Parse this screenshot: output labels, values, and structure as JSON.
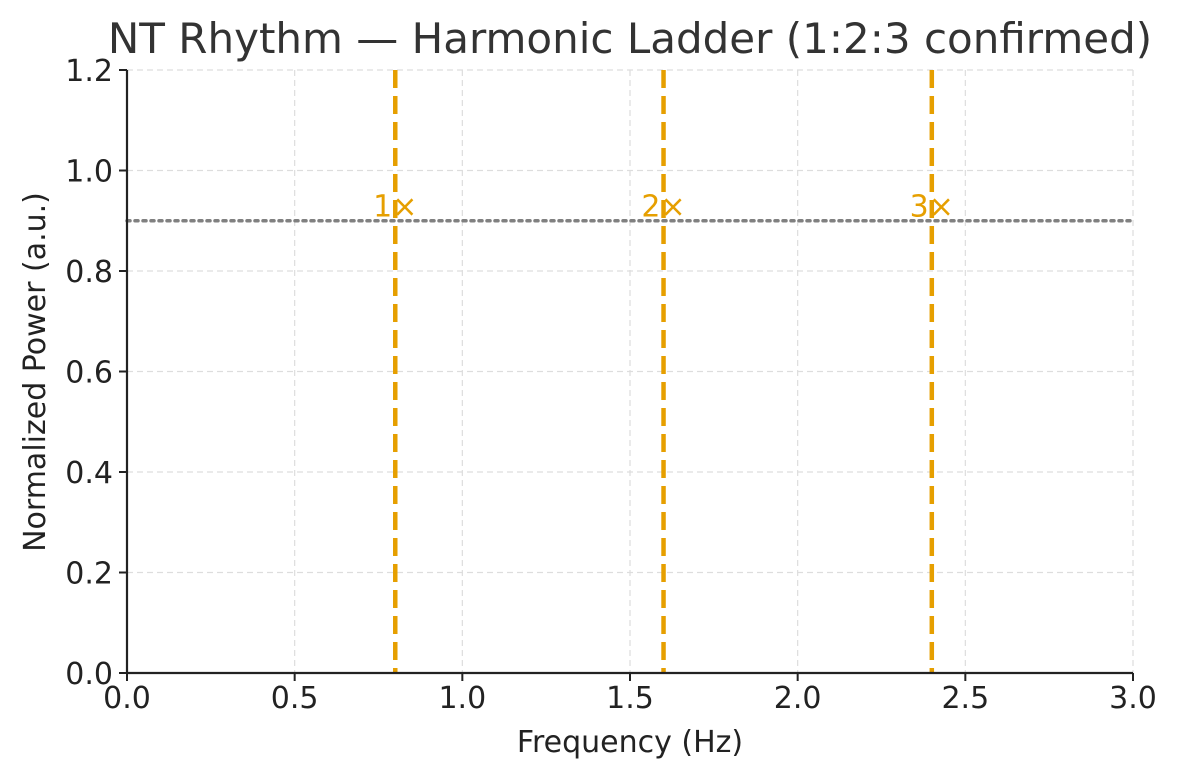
{
  "chart_data": {
    "type": "line",
    "title": "NT Rhythm — Harmonic Ladder (1:2:3 confirmed)",
    "xlabel": "Frequency (Hz)",
    "ylabel": "Normalized Power (a.u.)",
    "xlim": [
      0.0,
      3.0
    ],
    "ylim": [
      0.0,
      1.2
    ],
    "x_ticks": [
      "0.0",
      "0.5",
      "1.0",
      "1.5",
      "2.0",
      "2.5",
      "3.0"
    ],
    "y_ticks": [
      "0.0",
      "0.2",
      "0.4",
      "0.6",
      "0.8",
      "1.0",
      "1.2"
    ],
    "grid": true,
    "harmonics": [
      {
        "label": "1×",
        "x": 0.8
      },
      {
        "label": "2×",
        "x": 1.6
      },
      {
        "label": "3×",
        "x": 2.4
      }
    ],
    "harmonic_label_y": 0.93,
    "reference_line": {
      "y": 0.9,
      "style": "dotted"
    },
    "colors": {
      "harmonic": "#E69F00",
      "reference": "#808080",
      "grid": "#dddddd",
      "axis": "#222222"
    }
  }
}
